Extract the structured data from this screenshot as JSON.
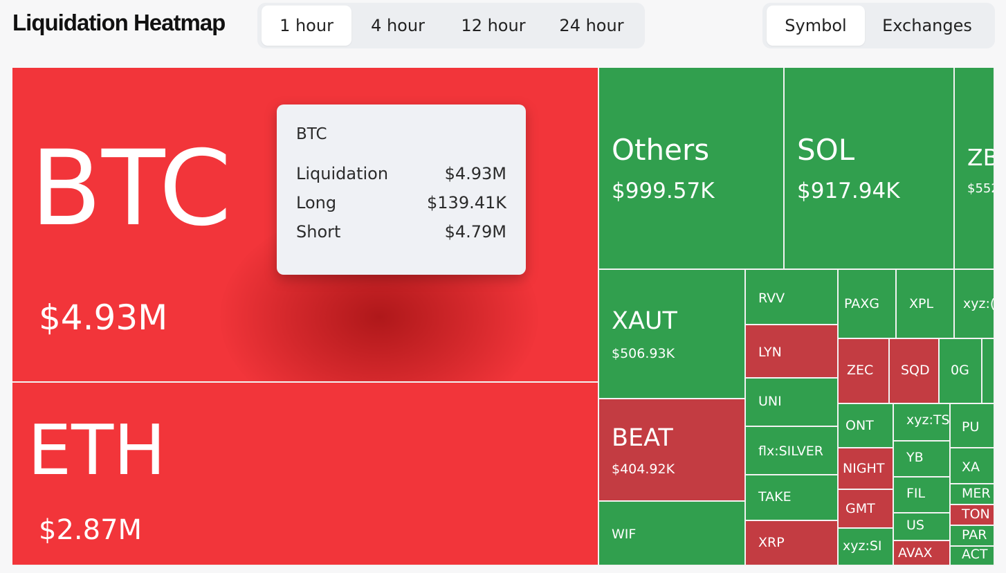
{
  "header": {
    "title": "Liquidation Heatmap",
    "time_tabs": [
      {
        "label": "1 hour",
        "active": true
      },
      {
        "label": "4 hour",
        "active": false
      },
      {
        "label": "12 hour",
        "active": false
      },
      {
        "label": "24 hour",
        "active": false
      }
    ],
    "view_tabs": [
      {
        "label": "Symbol",
        "active": true
      },
      {
        "label": "Exchanges",
        "active": false
      }
    ]
  },
  "tiles": {
    "btc": {
      "label": "BTC",
      "value": "$4.93M"
    },
    "eth": {
      "label": "ETH",
      "value": "$2.87M"
    },
    "others": {
      "label": "Others",
      "value": "$999.57K"
    },
    "sol": {
      "label": "SOL",
      "value": "$917.94K"
    },
    "zb": {
      "label": "ZB",
      "value": "$552"
    },
    "xaut": {
      "label": "XAUT",
      "value": "$506.93K"
    },
    "beat": {
      "label": "BEAT",
      "value": "$404.92K"
    },
    "wif": {
      "label": "WIF"
    },
    "rvv": {
      "label": "RVV"
    },
    "lyn": {
      "label": "LYN"
    },
    "uni": {
      "label": "UNI"
    },
    "flxsilver": {
      "label": "flx:SILVER"
    },
    "take": {
      "label": "TAKE"
    },
    "xrp": {
      "label": "XRP"
    },
    "paxg": {
      "label": "PAXG"
    },
    "xpl": {
      "label": "XPL"
    },
    "xyzc": {
      "label": "xyz:("
    },
    "zec": {
      "label": "ZEC"
    },
    "sqd": {
      "label": "SQD"
    },
    "og": {
      "label": "0G"
    },
    "ont": {
      "label": "ONT"
    },
    "xyzts": {
      "label": "xyz:TS"
    },
    "pu": {
      "label": "PU"
    },
    "night": {
      "label": "NIGHT"
    },
    "yb": {
      "label": "YB"
    },
    "xa": {
      "label": "XA"
    },
    "fil": {
      "label": "FIL"
    },
    "mer": {
      "label": "MER"
    },
    "gmt": {
      "label": "GMT"
    },
    "ton": {
      "label": "TON"
    },
    "us": {
      "label": "US"
    },
    "par": {
      "label": "PAR"
    },
    "xyzsi": {
      "label": "xyz:SI"
    },
    "avax": {
      "label": "AVAX"
    },
    "act": {
      "label": "ACT"
    }
  },
  "tooltip": {
    "symbol": "BTC",
    "rows": [
      {
        "label": "Liquidation",
        "value": "$4.93M"
      },
      {
        "label": "Long",
        "value": "$139.41K"
      },
      {
        "label": "Short",
        "value": "$4.79M"
      }
    ]
  },
  "colors": {
    "long_dominant": "#319f4e",
    "short_dominant": "#f2353a",
    "mixed_red": "#c33c42"
  }
}
